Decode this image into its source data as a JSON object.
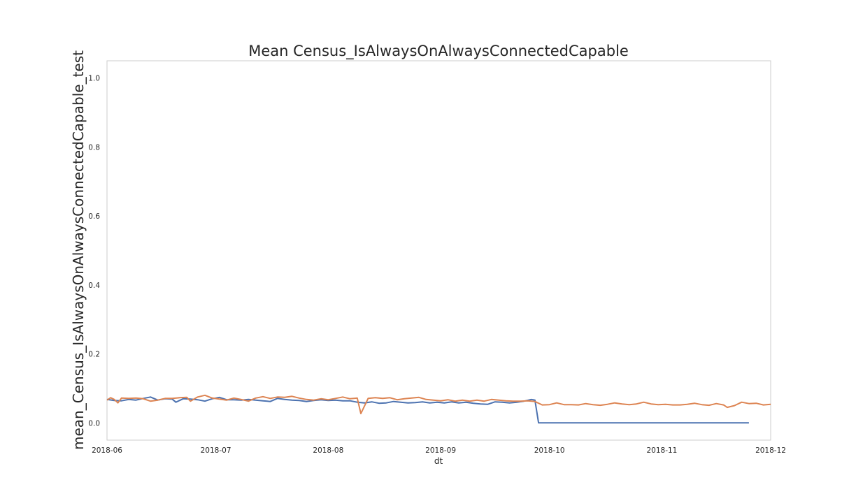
{
  "chart_data": {
    "type": "line",
    "title": "Mean Census_IsAlwaysOnAlwaysConnectedCapable",
    "xlabel": "dt",
    "ylabel": "mean_Census_IsAlwaysOnAlwaysConnectedCapable_test",
    "x_range": [
      "2018-06-01",
      "2018-12-01"
    ],
    "ylim": [
      -0.05,
      1.05
    ],
    "x_tick_labels": [
      "2018-06",
      "2018-07",
      "2018-08",
      "2018-09",
      "2018-10",
      "2018-11",
      "2018-12"
    ],
    "y_tick_labels": [
      "0.0",
      "0.2",
      "0.4",
      "0.6",
      "0.8",
      "1.0"
    ],
    "y_tick_values": [
      0.0,
      0.2,
      0.4,
      0.6,
      0.8,
      1.0
    ],
    "grid": false,
    "series": [
      {
        "color": "#4c72b0",
        "points": [
          [
            "2018-06-01",
            0.068
          ],
          [
            "2018-06-03",
            0.065
          ],
          [
            "2018-06-05",
            0.064
          ],
          [
            "2018-06-07",
            0.068
          ],
          [
            "2018-06-09",
            0.066
          ],
          [
            "2018-06-11",
            0.071
          ],
          [
            "2018-06-13",
            0.075
          ],
          [
            "2018-06-15",
            0.066
          ],
          [
            "2018-06-17",
            0.07
          ],
          [
            "2018-06-19",
            0.069
          ],
          [
            "2018-06-20",
            0.06
          ],
          [
            "2018-06-22",
            0.07
          ],
          [
            "2018-06-24",
            0.069
          ],
          [
            "2018-06-26",
            0.067
          ],
          [
            "2018-06-28",
            0.063
          ],
          [
            "2018-06-30",
            0.07
          ],
          [
            "2018-07-02",
            0.074
          ],
          [
            "2018-07-04",
            0.067
          ],
          [
            "2018-07-06",
            0.067
          ],
          [
            "2018-07-08",
            0.066
          ],
          [
            "2018-07-10",
            0.068
          ],
          [
            "2018-07-12",
            0.066
          ],
          [
            "2018-07-14",
            0.064
          ],
          [
            "2018-07-16",
            0.062
          ],
          [
            "2018-07-18",
            0.071
          ],
          [
            "2018-07-20",
            0.068
          ],
          [
            "2018-07-22",
            0.066
          ],
          [
            "2018-07-24",
            0.065
          ],
          [
            "2018-07-26",
            0.062
          ],
          [
            "2018-07-28",
            0.065
          ],
          [
            "2018-07-30",
            0.067
          ],
          [
            "2018-08-01",
            0.065
          ],
          [
            "2018-08-03",
            0.066
          ],
          [
            "2018-08-05",
            0.064
          ],
          [
            "2018-08-07",
            0.064
          ],
          [
            "2018-08-09",
            0.06
          ],
          [
            "2018-08-11",
            0.058
          ],
          [
            "2018-08-13",
            0.061
          ],
          [
            "2018-08-15",
            0.057
          ],
          [
            "2018-08-17",
            0.058
          ],
          [
            "2018-08-19",
            0.062
          ],
          [
            "2018-08-21",
            0.06
          ],
          [
            "2018-08-23",
            0.058
          ],
          [
            "2018-08-25",
            0.059
          ],
          [
            "2018-08-27",
            0.061
          ],
          [
            "2018-08-29",
            0.058
          ],
          [
            "2018-08-31",
            0.06
          ],
          [
            "2018-09-02",
            0.058
          ],
          [
            "2018-09-04",
            0.061
          ],
          [
            "2018-09-06",
            0.058
          ],
          [
            "2018-09-08",
            0.06
          ],
          [
            "2018-09-10",
            0.057
          ],
          [
            "2018-09-12",
            0.055
          ],
          [
            "2018-09-14",
            0.054
          ],
          [
            "2018-09-16",
            0.061
          ],
          [
            "2018-09-18",
            0.06
          ],
          [
            "2018-09-20",
            0.058
          ],
          [
            "2018-09-22",
            0.06
          ],
          [
            "2018-09-24",
            0.063
          ],
          [
            "2018-09-26",
            0.068
          ],
          [
            "2018-09-27",
            0.066
          ],
          [
            "2018-09-28",
            0.0
          ],
          [
            "2018-10-10",
            0.0
          ],
          [
            "2018-10-20",
            0.0
          ],
          [
            "2018-11-01",
            0.0
          ],
          [
            "2018-11-10",
            0.0
          ],
          [
            "2018-11-20",
            0.0
          ],
          [
            "2018-11-25",
            0.0
          ]
        ]
      },
      {
        "color": "#dd8452",
        "points": [
          [
            "2018-06-01",
            0.066
          ],
          [
            "2018-06-02",
            0.073
          ],
          [
            "2018-06-03",
            0.068
          ],
          [
            "2018-06-04",
            0.058
          ],
          [
            "2018-06-05",
            0.072
          ],
          [
            "2018-06-07",
            0.071
          ],
          [
            "2018-06-09",
            0.072
          ],
          [
            "2018-06-11",
            0.07
          ],
          [
            "2018-06-13",
            0.063
          ],
          [
            "2018-06-15",
            0.066
          ],
          [
            "2018-06-17",
            0.071
          ],
          [
            "2018-06-19",
            0.071
          ],
          [
            "2018-06-21",
            0.073
          ],
          [
            "2018-06-23",
            0.074
          ],
          [
            "2018-06-24",
            0.063
          ],
          [
            "2018-06-26",
            0.075
          ],
          [
            "2018-06-28",
            0.08
          ],
          [
            "2018-06-30",
            0.072
          ],
          [
            "2018-07-02",
            0.069
          ],
          [
            "2018-07-04",
            0.066
          ],
          [
            "2018-07-06",
            0.072
          ],
          [
            "2018-07-08",
            0.068
          ],
          [
            "2018-07-10",
            0.063
          ],
          [
            "2018-07-12",
            0.072
          ],
          [
            "2018-07-14",
            0.076
          ],
          [
            "2018-07-16",
            0.071
          ],
          [
            "2018-07-18",
            0.075
          ],
          [
            "2018-07-20",
            0.074
          ],
          [
            "2018-07-22",
            0.077
          ],
          [
            "2018-07-24",
            0.072
          ],
          [
            "2018-07-26",
            0.068
          ],
          [
            "2018-07-28",
            0.066
          ],
          [
            "2018-07-30",
            0.07
          ],
          [
            "2018-08-01",
            0.067
          ],
          [
            "2018-08-03",
            0.071
          ],
          [
            "2018-08-05",
            0.075
          ],
          [
            "2018-08-07",
            0.07
          ],
          [
            "2018-08-09",
            0.072
          ],
          [
            "2018-08-10",
            0.027
          ],
          [
            "2018-08-12",
            0.071
          ],
          [
            "2018-08-14",
            0.073
          ],
          [
            "2018-08-16",
            0.071
          ],
          [
            "2018-08-18",
            0.073
          ],
          [
            "2018-08-20",
            0.067
          ],
          [
            "2018-08-22",
            0.07
          ],
          [
            "2018-08-24",
            0.072
          ],
          [
            "2018-08-26",
            0.074
          ],
          [
            "2018-08-28",
            0.068
          ],
          [
            "2018-08-30",
            0.066
          ],
          [
            "2018-09-01",
            0.064
          ],
          [
            "2018-09-03",
            0.067
          ],
          [
            "2018-09-05",
            0.063
          ],
          [
            "2018-09-07",
            0.066
          ],
          [
            "2018-09-09",
            0.063
          ],
          [
            "2018-09-11",
            0.066
          ],
          [
            "2018-09-13",
            0.063
          ],
          [
            "2018-09-15",
            0.068
          ],
          [
            "2018-09-17",
            0.066
          ],
          [
            "2018-09-19",
            0.064
          ],
          [
            "2018-09-21",
            0.063
          ],
          [
            "2018-09-23",
            0.063
          ],
          [
            "2018-09-25",
            0.064
          ],
          [
            "2018-09-27",
            0.062
          ],
          [
            "2018-09-29",
            0.052
          ],
          [
            "2018-10-01",
            0.053
          ],
          [
            "2018-10-03",
            0.058
          ],
          [
            "2018-10-05",
            0.053
          ],
          [
            "2018-10-07",
            0.053
          ],
          [
            "2018-10-09",
            0.052
          ],
          [
            "2018-10-11",
            0.056
          ],
          [
            "2018-10-13",
            0.053
          ],
          [
            "2018-10-15",
            0.051
          ],
          [
            "2018-10-17",
            0.054
          ],
          [
            "2018-10-19",
            0.058
          ],
          [
            "2018-10-21",
            0.055
          ],
          [
            "2018-10-23",
            0.053
          ],
          [
            "2018-10-25",
            0.055
          ],
          [
            "2018-10-27",
            0.06
          ],
          [
            "2018-10-29",
            0.055
          ],
          [
            "2018-10-31",
            0.053
          ],
          [
            "2018-11-02",
            0.054
          ],
          [
            "2018-11-04",
            0.052
          ],
          [
            "2018-11-06",
            0.052
          ],
          [
            "2018-11-08",
            0.054
          ],
          [
            "2018-11-10",
            0.057
          ],
          [
            "2018-11-12",
            0.053
          ],
          [
            "2018-11-14",
            0.051
          ],
          [
            "2018-11-16",
            0.056
          ],
          [
            "2018-11-18",
            0.052
          ],
          [
            "2018-11-19",
            0.045
          ],
          [
            "2018-11-21",
            0.05
          ],
          [
            "2018-11-23",
            0.06
          ],
          [
            "2018-11-25",
            0.056
          ],
          [
            "2018-11-27",
            0.057
          ],
          [
            "2018-11-29",
            0.052
          ],
          [
            "2018-12-01",
            0.054
          ]
        ]
      }
    ]
  }
}
